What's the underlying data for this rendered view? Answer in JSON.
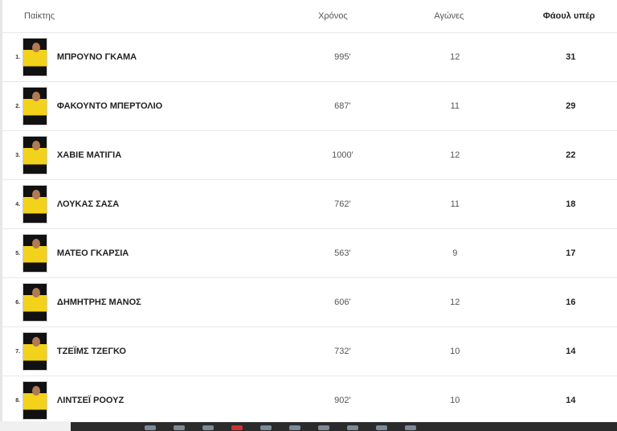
{
  "headers": {
    "player": "Παίκτης",
    "time": "Χρόνος",
    "games": "Αγώνες",
    "fouls": "Φάουλ υπέρ"
  },
  "rows": [
    {
      "rank": "1.",
      "name": "ΜΠΡΟΥΝΟ ΓΚΑΜΑ",
      "time": "995'",
      "games": "12",
      "fouls": "31"
    },
    {
      "rank": "2.",
      "name": "ΦΑΚΟΥΝΤΟ ΜΠΕΡΤΟΛΙΟ",
      "time": "687'",
      "games": "11",
      "fouls": "29"
    },
    {
      "rank": "3.",
      "name": "ΧΑΒΙΕ ΜΑΤΙΓΙΑ",
      "time": "1000'",
      "games": "12",
      "fouls": "22"
    },
    {
      "rank": "4.",
      "name": "ΛΟΥΚΑΣ ΣΑΣΑ",
      "time": "762'",
      "games": "11",
      "fouls": "18"
    },
    {
      "rank": "5.",
      "name": "ΜΑΤΕΟ ΓΚΑΡΣΙΑ",
      "time": "563'",
      "games": "9",
      "fouls": "17"
    },
    {
      "rank": "6.",
      "name": "ΔΗΜΗΤΡΗΣ ΜΑΝΟΣ",
      "time": "606'",
      "games": "12",
      "fouls": "16"
    },
    {
      "rank": "7.",
      "name": "ΤΖΕΪΜΣ ΤΖΕΓΚΟ",
      "time": "732'",
      "games": "10",
      "fouls": "14"
    },
    {
      "rank": "8.",
      "name": "ΛΙΝΤΣΕΪ ΡΟΟΥΖ",
      "time": "902'",
      "games": "10",
      "fouls": "14"
    }
  ],
  "colors": {
    "jersey": "#f3d21b",
    "taskbar": "#2b2b2b"
  }
}
